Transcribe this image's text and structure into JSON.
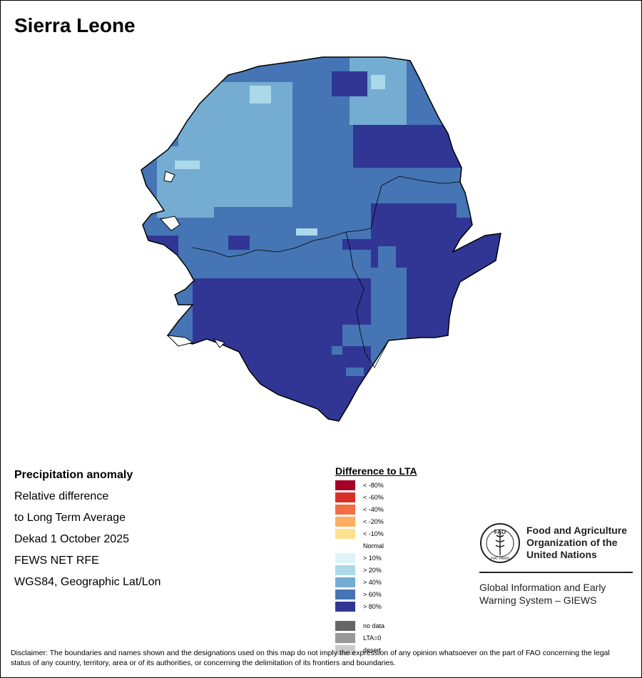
{
  "map": {
    "title": "Sierra Leone",
    "colors": {
      "lt80": "#a50026",
      "lt60": "#d73027",
      "lt40": "#f46d43",
      "lt20": "#fdae61",
      "lt10": "#fee090",
      "normal": "#ffffff",
      "gt10": "#e0f3f8",
      "gt20": "#abd9e9",
      "gt40": "#74add1",
      "gt60": "#4575b4",
      "gt80": "#313695",
      "nodata": "#666666",
      "lta0": "#999999",
      "desert": "#cccccc"
    }
  },
  "info": {
    "heading": "Precipitation anomaly",
    "line1": "Relative difference",
    "line2": "to Long Term Average",
    "line3": "Dekad 1 October 2025",
    "line4": "FEWS NET RFE",
    "line5": "WGS84, Geographic Lat/Lon"
  },
  "legend": {
    "title": "Difference to LTA",
    "items": [
      {
        "label": "< -80%",
        "color": "#a50026"
      },
      {
        "label": "< -60%",
        "color": "#d73027"
      },
      {
        "label": "< -40%",
        "color": "#f46d43"
      },
      {
        "label": "< -20%",
        "color": "#fdae61"
      },
      {
        "label": "< -10%",
        "color": "#fee090"
      },
      {
        "label": "Normal",
        "color": "#ffffff"
      },
      {
        "label": "> 10%",
        "color": "#e0f3f8"
      },
      {
        "label": "> 20%",
        "color": "#abd9e9"
      },
      {
        "label": "> 40%",
        "color": "#74add1"
      },
      {
        "label": "> 60%",
        "color": "#4575b4"
      },
      {
        "label": "> 80%",
        "color": "#313695"
      }
    ],
    "extra": [
      {
        "label": "no data",
        "color": "#666666"
      },
      {
        "label": "LTA=0",
        "color": "#999999"
      },
      {
        "label": "desert",
        "color": "#cccccc"
      }
    ]
  },
  "logo": {
    "emblem_text": "FAO",
    "motto": "FIAT PANIS",
    "name_line1": "Food and Agriculture",
    "name_line2": "Organization of the",
    "name_line3": "United Nations",
    "sub_line1": "Global Information and Early",
    "sub_line2": "Warning System – GIEWS"
  },
  "disclaimer": "Disclaimer: The boundaries and names shown and the designations used on this map do not imply the expression of any opinion whatsoever on the part of FAO concerning the legal status of any country, territory, area or of its authorities, or concerning the delimitation of its frontiers and boundaries."
}
